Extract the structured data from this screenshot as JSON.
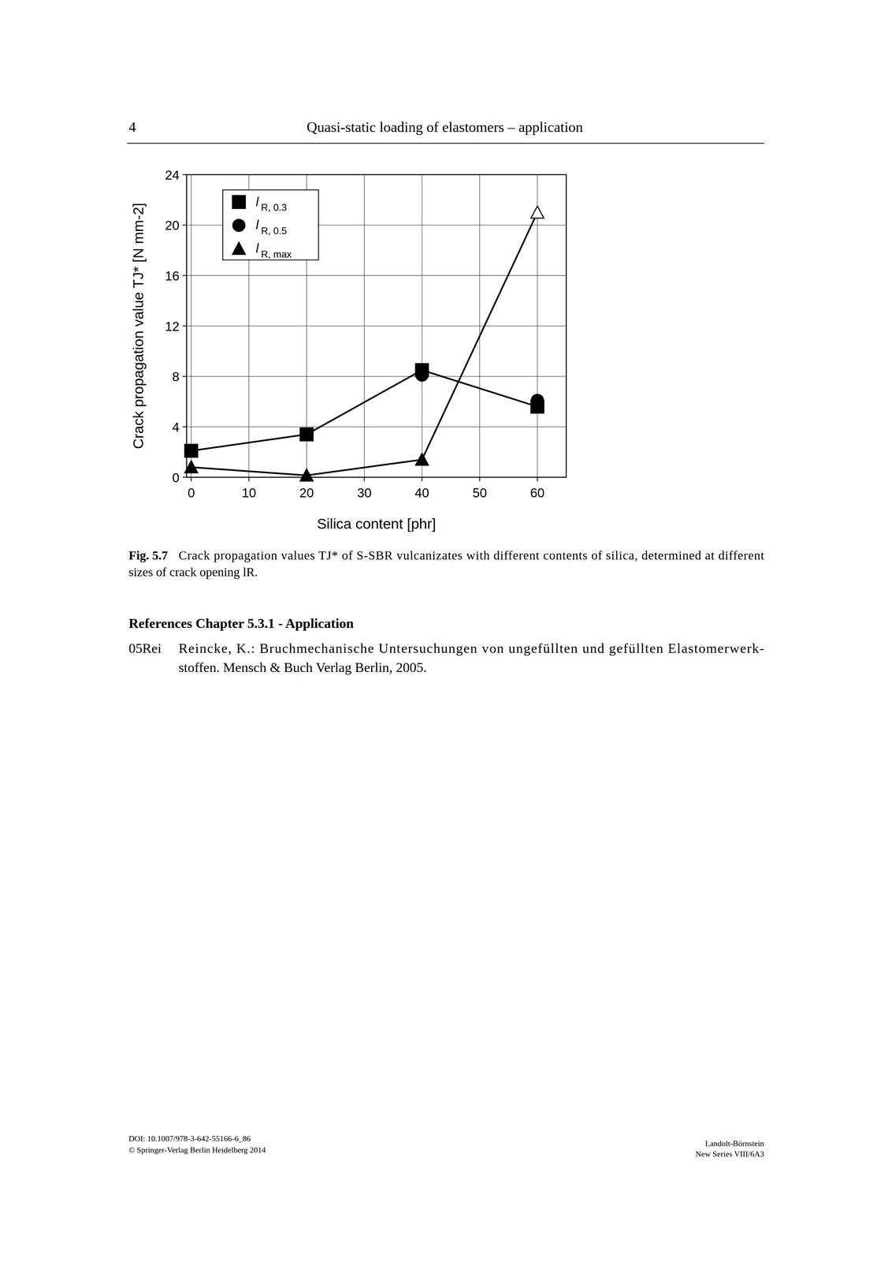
{
  "chart_data": {
    "type": "line",
    "x_label": "Silica content [phr]",
    "y_label": "Crack propagation value TJ* [N mm-2]",
    "x": [
      0,
      20,
      40,
      60
    ],
    "series": [
      {
        "name": "lR, 0.5",
        "color": "#000000",
        "marker": "circle",
        "line_style": "none",
        "values": [
          2.1,
          3.4,
          8.1,
          6.1
        ]
      },
      {
        "name": "lR, 0.3",
        "color": "#000000",
        "marker": "square",
        "line_style": "solid",
        "values": [
          2.1,
          3.4,
          8.5,
          5.6
        ]
      },
      {
        "name": "lR, max",
        "color": "#000000",
        "marker": "triangle",
        "line_style": "solid",
        "values": [
          0.8,
          0.15,
          1.4,
          21.0
        ],
        "colors": [
          "#000000",
          "#000000",
          "#000000",
          "#ffffff"
        ]
      }
    ],
    "legend_order": [
      "lR, 0.3",
      "lR, 0.5",
      "lR, max"
    ],
    "xlim": [
      -0.8,
      65
    ],
    "ylim": [
      0,
      24
    ],
    "xticks": [
      0,
      10,
      20,
      30,
      40,
      50,
      60
    ],
    "yticks": [
      0,
      4,
      8,
      12,
      16,
      20,
      24
    ],
    "grid": true,
    "legend": "upper left"
  },
  "page": {
    "number": "4",
    "running_head": "Quasi-static loading of elastomers – application",
    "caption": {
      "label": "Fig. 5.7",
      "lines": [
        "Crack propagation values TJ* of S-SBR vulcanizates with different contents of silica, determined at different",
        "sizes of crack opening lR."
      ]
    },
    "references": {
      "heading": "References Chapter 5.3.1 - Application",
      "entries": [
        {
          "key": "05Rei",
          "lines": [
            "Reincke, K.: Bruchmechanische Untersuchungen von ungefüllten und gefüllten Elastomerwerk-",
            "stoffen. Mensch & Buch Verlag Berlin, 2005."
          ]
        }
      ]
    },
    "footer": {
      "left": [
        "DOI: 10.1007/978-3-642-55166-6_86",
        "© Springer-Verlag Berlin Heidelberg 2014"
      ],
      "right": [
        "Landolt-Börnstein",
        "New Series VIII/6A3"
      ]
    }
  }
}
